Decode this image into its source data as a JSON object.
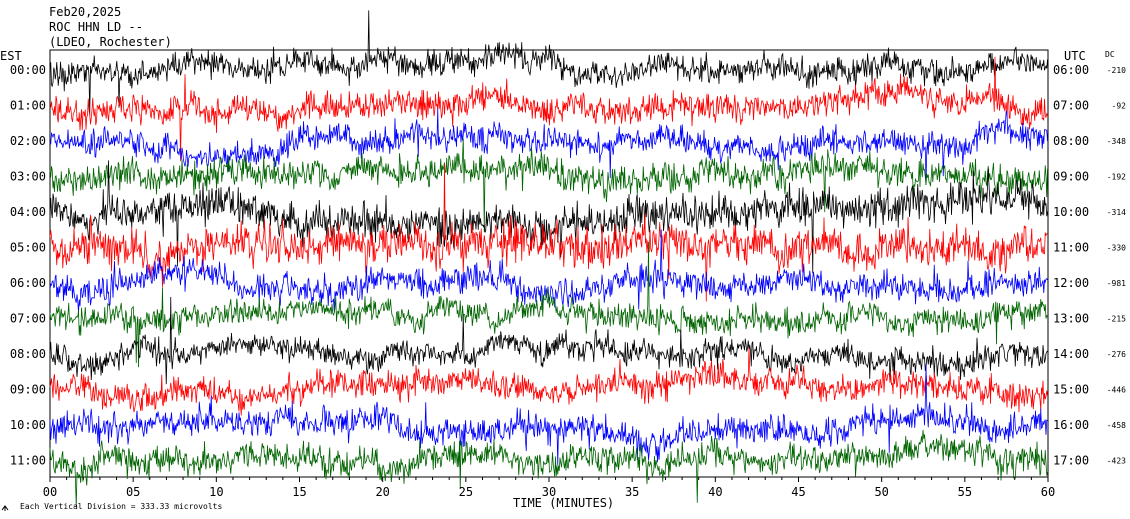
{
  "header": {
    "date": "Feb20,2025",
    "station": "ROC HHN LD --",
    "network": "(LDEO, Rochester)"
  },
  "left_axis_label": "EST",
  "right_axis_label": "UTC",
  "dc_label": "DC",
  "footer": {
    "scale_note": "Each Vertical Division =  333.33 microvolts"
  },
  "colors": {
    "black": "#000000",
    "red": "#ff0000",
    "blue": "#0000ff",
    "green": "#006400"
  },
  "chart_data": {
    "type": "line",
    "title": "",
    "xlabel": "TIME (MINUTES)",
    "ylabel": "",
    "xlim": [
      0,
      60
    ],
    "x_ticks": [
      "00",
      "05",
      "10",
      "15",
      "20",
      "25",
      "30",
      "35",
      "40",
      "45",
      "50",
      "55",
      "60"
    ],
    "series": [
      {
        "est": "00:00",
        "utc": "06:00",
        "dc": "-210",
        "color": "black",
        "amplitude": 0.55
      },
      {
        "est": "01:00",
        "utc": "07:00",
        "dc": "-92",
        "color": "red",
        "amplitude": 0.6
      },
      {
        "est": "02:00",
        "utc": "08:00",
        "dc": "-348",
        "color": "blue",
        "amplitude": 0.55
      },
      {
        "est": "03:00",
        "utc": "09:00",
        "dc": "-192",
        "color": "green",
        "amplitude": 0.65
      },
      {
        "est": "04:00",
        "utc": "10:00",
        "dc": "-314",
        "color": "black",
        "amplitude": 0.8
      },
      {
        "est": "05:00",
        "utc": "11:00",
        "dc": "-330",
        "color": "red",
        "amplitude": 0.85
      },
      {
        "est": "06:00",
        "utc": "12:00",
        "dc": "-981",
        "color": "blue",
        "amplitude": 0.6
      },
      {
        "est": "07:00",
        "utc": "13:00",
        "dc": "-215",
        "color": "green",
        "amplitude": 0.55
      },
      {
        "est": "08:00",
        "utc": "14:00",
        "dc": "-276",
        "color": "black",
        "amplitude": 0.55
      },
      {
        "est": "09:00",
        "utc": "15:00",
        "dc": "-446",
        "color": "red",
        "amplitude": 0.6
      },
      {
        "est": "10:00",
        "utc": "16:00",
        "dc": "-458",
        "color": "blue",
        "amplitude": 0.6
      },
      {
        "est": "11:00",
        "utc": "17:00",
        "dc": "-423",
        "color": "green",
        "amplitude": 0.6
      }
    ]
  }
}
